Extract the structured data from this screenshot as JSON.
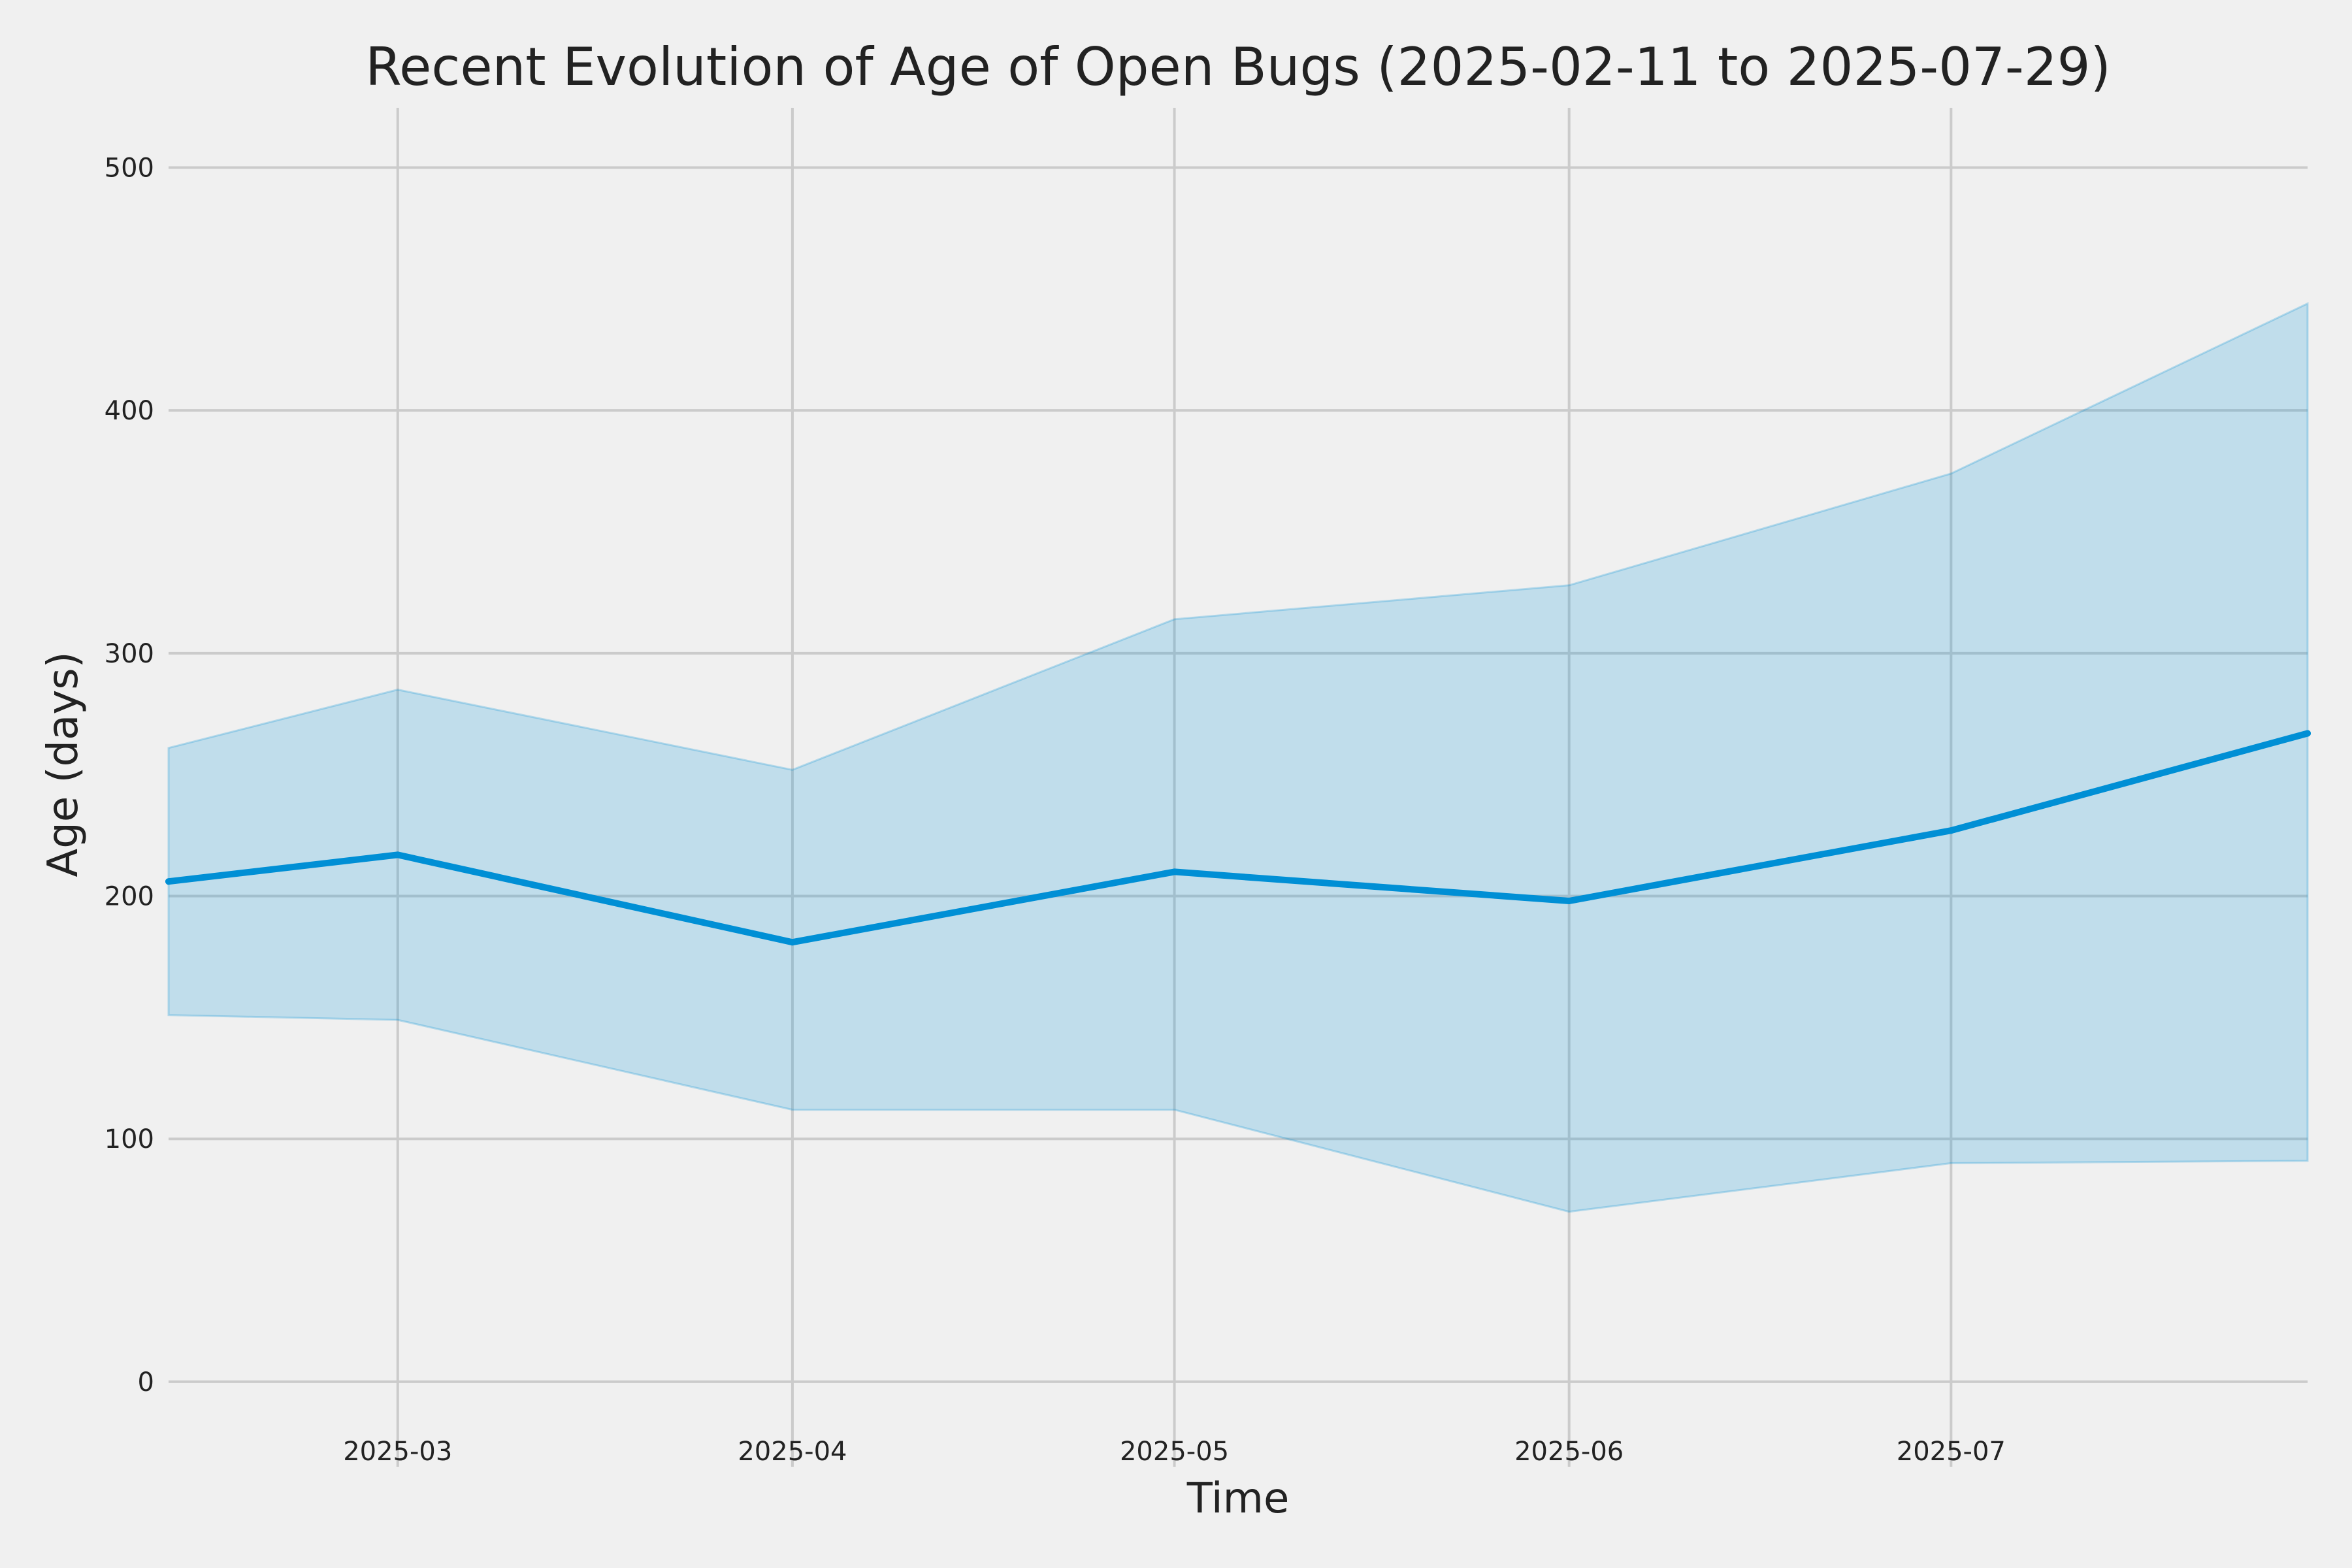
{
  "chart_data": {
    "type": "line",
    "title": "Recent Evolution of Age of Open Bugs (2025-02-11 to 2025-07-29)",
    "xlabel": "Time",
    "ylabel": "Age (days)",
    "xlim": [
      "2025-02-11",
      "2025-07-29"
    ],
    "ylim": [
      -35,
      530
    ],
    "grid": true,
    "x_ticks": [
      "2025-03",
      "2025-04",
      "2025-05",
      "2025-06",
      "2025-07"
    ],
    "y_ticks": [
      0,
      100,
      200,
      300,
      400,
      500
    ],
    "x": [
      "2025-02-11",
      "2025-03-01",
      "2025-04-01",
      "2025-05-01",
      "2025-06-01",
      "2025-07-01",
      "2025-07-29"
    ],
    "series": [
      {
        "values": [
          206,
          217,
          181,
          210,
          198,
          227,
          267
        ],
        "color": "#008fd5"
      }
    ],
    "band": {
      "lower": [
        151,
        149,
        112,
        112,
        70,
        90,
        91
      ],
      "upper": [
        261,
        285,
        252,
        314,
        328,
        374,
        444
      ],
      "color": "#008fd5",
      "opacity": 0.2
    }
  }
}
